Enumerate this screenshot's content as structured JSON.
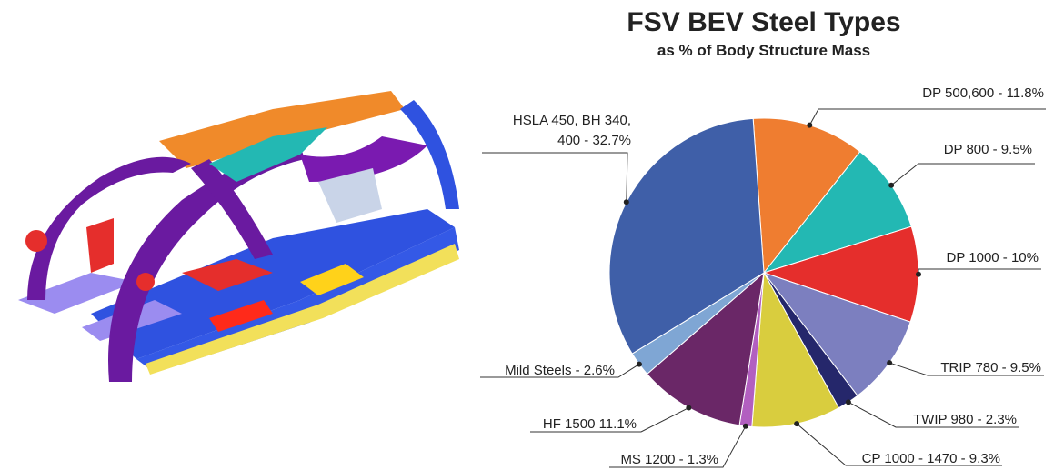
{
  "chart_data": {
    "type": "pie",
    "title": "FSV BEV Steel Types",
    "subtitle": "as % of Body Structure Mass",
    "categories": [
      "DP 500,600 - 11.8%",
      "DP 800 - 9.5%",
      "DP 1000 - 10%",
      "TRIP 780 - 9.5%",
      "TWIP 980 - 2.3%",
      "CP 1000 - 1470 - 9.3%",
      "MS 1200 - 1.3%",
      "HF 1500  11.1%",
      "Mild Steels - 2.6%",
      "HSLA 450, BH 340, 400 - 32.7%"
    ],
    "values": [
      11.8,
      9.5,
      10,
      9.5,
      2.3,
      9.3,
      1.3,
      11.1,
      2.6,
      32.7
    ],
    "colors": [
      "#ef7d30",
      "#23b8b3",
      "#e52e2c",
      "#7c7fbf",
      "#25276b",
      "#d9cd3e",
      "#b25fc0",
      "#6a2767",
      "#7fa6d4",
      "#3f5fa8"
    ]
  }
}
